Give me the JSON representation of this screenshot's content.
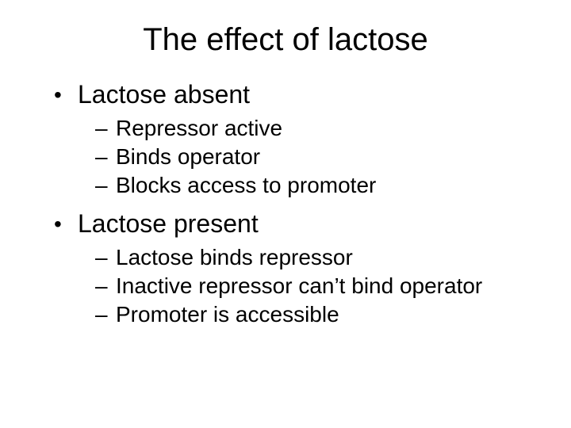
{
  "slide": {
    "background_color": "#ffffff",
    "text_color": "#000000",
    "title": {
      "text": "The effect of lactose",
      "font_size_pt": 40,
      "font_weight": 400,
      "align": "center"
    },
    "bullets": {
      "level1_font_size_pt": 32,
      "level2_font_size_pt": 28,
      "level1_marker": "•",
      "level2_marker": "–",
      "items": [
        {
          "label": "Lactose absent",
          "children": [
            "Repressor active",
            "Binds operator",
            "Blocks access to promoter"
          ]
        },
        {
          "label": "Lactose present",
          "children": [
            "Lactose binds repressor",
            "Inactive repressor can’t bind operator",
            "Promoter is accessible"
          ]
        }
      ]
    }
  }
}
